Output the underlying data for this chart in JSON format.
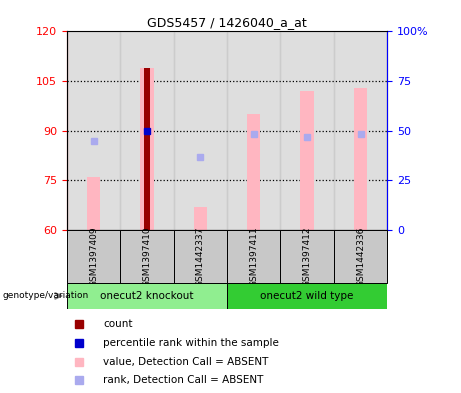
{
  "title": "GDS5457 / 1426040_a_at",
  "samples": [
    "GSM1397409",
    "GSM1397410",
    "GSM1442337",
    "GSM1397411",
    "GSM1397412",
    "GSM1442336"
  ],
  "ylim_left": [
    60,
    120
  ],
  "ylim_right": [
    0,
    100
  ],
  "yticks_left": [
    60,
    75,
    90,
    105,
    120
  ],
  "yticks_right": [
    0,
    25,
    50,
    75,
    100
  ],
  "yticklabels_right": [
    "0",
    "25",
    "50",
    "75",
    "100%"
  ],
  "pink_bar_values": [
    76,
    109,
    67,
    95,
    102,
    103
  ],
  "pink_bar_base": 60,
  "count_bar_index": 1,
  "count_bar_value": 109,
  "percentile_rank_index": 1,
  "percentile_rank_value": 90,
  "rank_absent_indices": [
    0,
    2
  ],
  "rank_absent_values": [
    87,
    82
  ],
  "rank_wt_indices": [
    3,
    4,
    5
  ],
  "rank_wt_values": [
    89,
    88,
    89
  ],
  "group1_label": "onecut2 knockout",
  "group2_label": "onecut2 wild type",
  "group1_color": "#90ee90",
  "group2_color": "#33cc33",
  "bar_bg_color": "#c8c8c8",
  "pink_color": "#ffb6c1",
  "dark_red_color": "#990000",
  "blue_color": "#0000cc",
  "light_blue_color": "#aaaaee",
  "legend_items": [
    {
      "label": "count",
      "color": "#990000"
    },
    {
      "label": "percentile rank within the sample",
      "color": "#0000cc"
    },
    {
      "label": "value, Detection Call = ABSENT",
      "color": "#ffb6c1"
    },
    {
      "label": "rank, Detection Call = ABSENT",
      "color": "#aaaaee"
    }
  ],
  "genotype_label": "genotype/variation"
}
